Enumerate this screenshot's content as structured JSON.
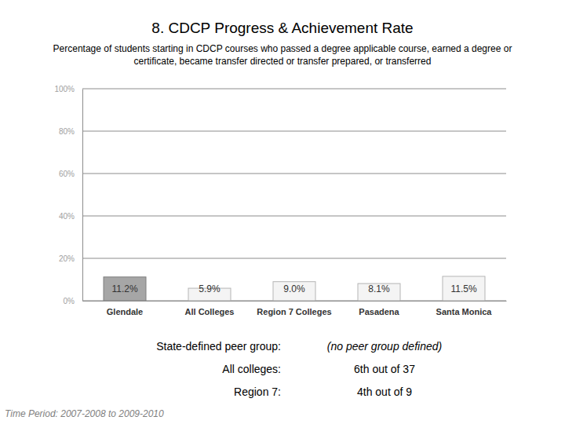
{
  "chart_data": {
    "type": "bar",
    "title": "8. CDCP Progress & Achievement Rate",
    "subtitle": "Percentage of students starting in CDCP courses who passed a degree applicable course, earned a degree or certificate, became transfer directed or transfer prepared, or transferred",
    "categories": [
      "Glendale",
      "All Colleges",
      "Region 7 Colleges",
      "Pasadena",
      "Santa Monica"
    ],
    "values": [
      11.2,
      5.9,
      9.0,
      8.1,
      11.5
    ],
    "value_labels": [
      "11.2%",
      "5.9%",
      "9.0%",
      "8.1%",
      "11.5%"
    ],
    "colors": [
      "#a6a6a6",
      "#f4f4f4",
      "#f4f4f4",
      "#f4f4f4",
      "#f4f4f4"
    ],
    "data_labels": true,
    "grid": true,
    "ylim": [
      0,
      100
    ],
    "yticks": [
      {
        "value": 0,
        "label": "0%"
      },
      {
        "value": 20,
        "label": "20%"
      },
      {
        "value": 40,
        "label": "40%"
      },
      {
        "value": 60,
        "label": "60%"
      },
      {
        "value": 80,
        "label": "80%"
      },
      {
        "value": 100,
        "label": "100%"
      }
    ],
    "rankings": [
      {
        "label": "State-defined peer group:",
        "value": "(no peer group defined)"
      },
      {
        "label": "All colleges:",
        "value": "6th out of 37"
      },
      {
        "label": "Region 7:",
        "value": "4th out of 9"
      }
    ],
    "footnote": "Time Period: 2007-2008 to 2009-2010"
  }
}
